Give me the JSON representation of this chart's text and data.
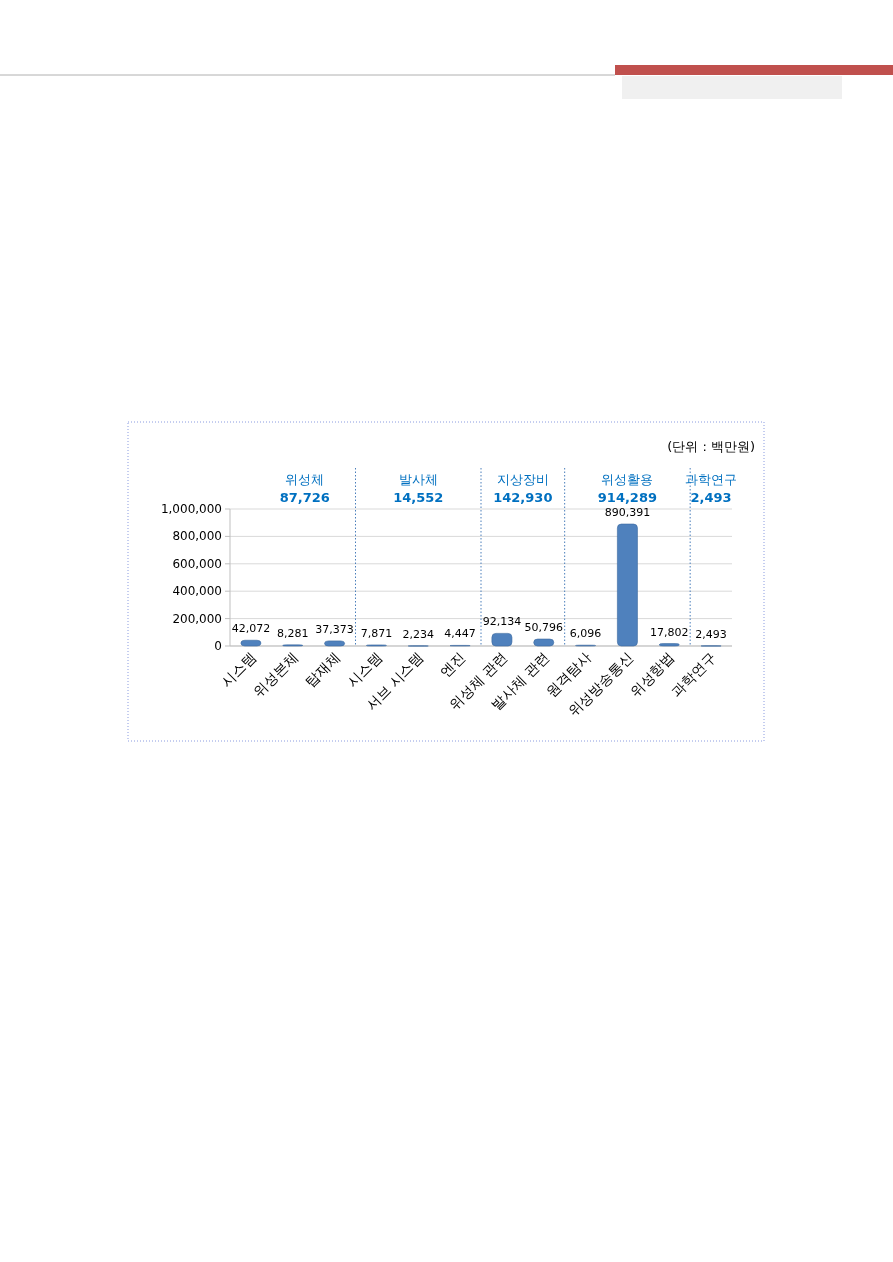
{
  "chart_data": {
    "type": "bar",
    "categories": [
      "시스템",
      "위성본체",
      "탑재체",
      "시스템",
      "서브 시스템",
      "엔진",
      "위성체 관련",
      "발사체 관련",
      "원격탐사",
      "위성방송통신",
      "위성항법",
      "과학연구"
    ],
    "values": [
      42072,
      8281,
      37373,
      7871,
      2234,
      4447,
      92134,
      50796,
      6096,
      890391,
      17802,
      2493
    ],
    "value_labels": [
      "42,072",
      "8,281",
      "37,373",
      "7,871",
      "2,234",
      "4,447",
      "92,134",
      "50,796",
      "6,096",
      "890,391",
      "17,802",
      "2,493"
    ],
    "color": "#4f81bd",
    "ylim": [
      0,
      1000000
    ],
    "yticks": [
      {
        "value": 0,
        "label": "0"
      },
      {
        "value": 200000,
        "label": "200,000"
      },
      {
        "value": 400000,
        "label": "400,000"
      },
      {
        "value": 600000,
        "label": "600,000"
      },
      {
        "value": 800000,
        "label": "800,000"
      },
      {
        "value": 1000000,
        "label": "1,000,000"
      }
    ],
    "grid": "y",
    "annotations": [
      "(단위 : 백만원)",
      "위성체",
      "87,726",
      "발사체",
      "14,552",
      "지상장비",
      "142,930",
      "위성활용",
      "914,289",
      "과학연구",
      "2,493"
    ]
  }
}
